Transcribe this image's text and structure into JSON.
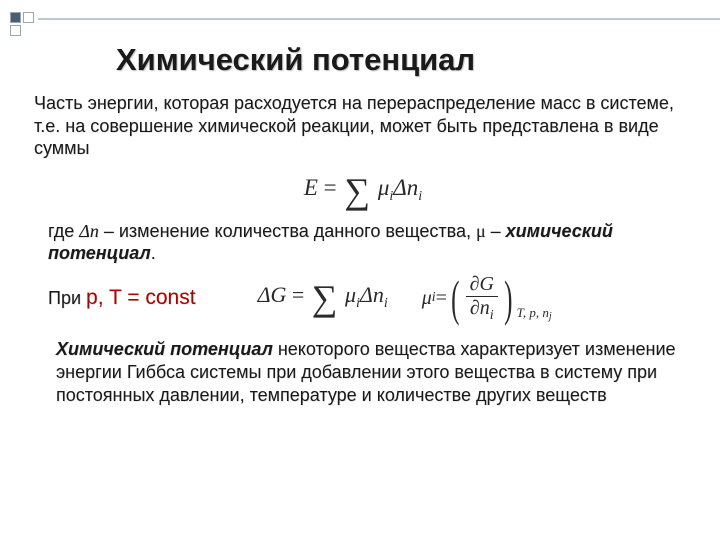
{
  "decoration": {
    "square_fill_dark": "#4a5e72",
    "square_border": "#9aa6b2",
    "hr_color": "#bfc7cf"
  },
  "title": "Химический потенциал",
  "intro": "Часть энергии, которая расходуется на перераспределение масс в системе, т.е. на совершение химической реакции, может быть представлена в виде суммы",
  "eq1": {
    "lhs": "E",
    "op": "=",
    "sum": "∑",
    "mu": "μ",
    "sub_i": "i",
    "delta": "Δ",
    "n": "n"
  },
  "explain": {
    "prefix": "где ",
    "dn": "Δn",
    "part1": " – изменение количества данного вещества, ",
    "mu": "μ",
    "part2": " – ",
    "term": "химический потенциал",
    "dot": "."
  },
  "row": {
    "pre": "При ",
    "cond": "p, T = const",
    "eq2": {
      "lhs": "ΔG",
      "op": "=",
      "sum": "∑",
      "mu": "μ",
      "sub_i": "i",
      "delta": "Δ",
      "n": "n"
    },
    "eq3": {
      "mu": "μ",
      "sub_i": "i",
      "eq": " = ",
      "partial": "∂",
      "G": "G",
      "n": "n",
      "sub_outer": "T, p, n",
      "sub_j": "j"
    }
  },
  "para3": {
    "lead": "Химический потенциал",
    "rest": " некоторого вещества характеризует изменение энергии Гиббса системы при добавлении этого вещества в систему при постоянных давлении, температуре и количестве других веществ"
  }
}
